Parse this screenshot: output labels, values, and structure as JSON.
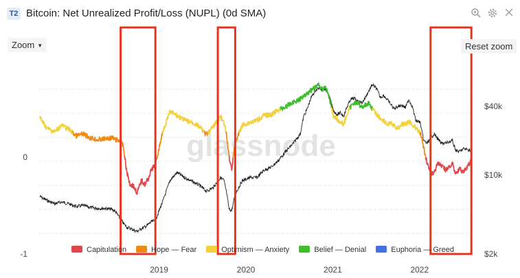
{
  "header": {
    "badge": "T2",
    "title": "Bitcoin: Net Unrealized Profit/Loss (NUPL) (0d SMA)",
    "icons": [
      "zoom-in-icon",
      "gear-icon",
      "close-icon"
    ]
  },
  "controls": {
    "zoom_label": "Zoom",
    "reset_label": "Reset zoom"
  },
  "watermark": "glassnode",
  "colors": {
    "capitulation": "#e0474c",
    "hope_fear": "#ef8a17",
    "optimism_anxiety": "#f2d13d",
    "belief_denial": "#3bbf2a",
    "euphoria_greed": "#4472e3",
    "price": "#222222",
    "highlight": "#e8341c"
  },
  "chart_data": {
    "type": "line",
    "title": "Bitcoin: Net Unrealized Profit/Loss (NUPL) (0d SMA)",
    "x_ticks": [
      "2019",
      "2020",
      "2021",
      "2022"
    ],
    "y_left_ticks": [
      "0",
      "-1"
    ],
    "y_right_ticks": [
      "$40k",
      "$10k",
      "$2k"
    ],
    "y_left_range": [
      -1,
      1
    ],
    "y_right_scale": "log",
    "y_right_range": [
      2000,
      100000
    ],
    "legend": [
      {
        "label": "Capitulation",
        "color": "#e0474c"
      },
      {
        "label": "Hope — Fear",
        "color": "#ef8a17"
      },
      {
        "label": "Optimism — Anxiety",
        "color": "#f2d13d"
      },
      {
        "label": "Belief — Denial",
        "color": "#3bbf2a"
      },
      {
        "label": "Euphoria — Greed",
        "color": "#4472e3"
      }
    ],
    "highlight_periods": [
      {
        "start": 2018.93,
        "end": 2019.33
      },
      {
        "start": 2020.05,
        "end": 2020.25
      },
      {
        "start": 2022.5,
        "end": 2022.97
      }
    ],
    "series": [
      {
        "name": "NUPL",
        "x": [
          2018.0,
          2018.08,
          2018.17,
          2018.25,
          2018.33,
          2018.42,
          2018.5,
          2018.58,
          2018.67,
          2018.75,
          2018.83,
          2018.87,
          2018.92,
          2018.96,
          2019.0,
          2019.04,
          2019.08,
          2019.12,
          2019.17,
          2019.21,
          2019.25,
          2019.29,
          2019.33,
          2019.42,
          2019.5,
          2019.58,
          2019.67,
          2019.75,
          2019.83,
          2019.92,
          2020.0,
          2020.08,
          2020.12,
          2020.15,
          2020.18,
          2020.21,
          2020.25,
          2020.33,
          2020.42,
          2020.5,
          2020.58,
          2020.67,
          2020.75,
          2020.83,
          2020.92,
          2021.0,
          2021.04,
          2021.08,
          2021.12,
          2021.17,
          2021.21,
          2021.25,
          2021.29,
          2021.33,
          2021.38,
          2021.42,
          2021.46,
          2021.5,
          2021.54,
          2021.58,
          2021.62,
          2021.67,
          2021.71,
          2021.75,
          2021.79,
          2021.83,
          2021.88,
          2021.92,
          2021.96,
          2022.0,
          2022.04,
          2022.08,
          2022.12,
          2022.17,
          2022.21,
          2022.25,
          2022.29,
          2022.33,
          2022.38,
          2022.42,
          2022.46,
          2022.5,
          2022.54,
          2022.58,
          2022.62,
          2022.67,
          2022.71,
          2022.75,
          2022.79,
          2022.83,
          2022.88,
          2022.92,
          2022.96
        ],
        "y": [
          0.41,
          0.3,
          0.26,
          0.33,
          0.29,
          0.22,
          0.24,
          0.2,
          0.18,
          0.19,
          0.2,
          0.18,
          0.17,
          0.12,
          -0.15,
          -0.28,
          -0.3,
          -0.37,
          -0.24,
          -0.28,
          -0.22,
          -0.12,
          -0.08,
          0.28,
          0.47,
          0.43,
          0.38,
          0.36,
          0.32,
          0.23,
          0.32,
          0.42,
          0.35,
          0.23,
          0.0,
          -0.12,
          0.15,
          0.33,
          0.36,
          0.38,
          0.43,
          0.44,
          0.49,
          0.52,
          0.57,
          0.6,
          0.64,
          0.66,
          0.69,
          0.72,
          0.75,
          0.7,
          0.73,
          0.62,
          0.43,
          0.4,
          0.36,
          0.34,
          0.45,
          0.52,
          0.57,
          0.55,
          0.52,
          0.54,
          0.56,
          0.5,
          0.44,
          0.4,
          0.38,
          0.34,
          0.35,
          0.32,
          0.3,
          0.34,
          0.34,
          0.37,
          0.34,
          0.3,
          0.25,
          0.1,
          -0.05,
          -0.18,
          -0.16,
          -0.06,
          -0.09,
          -0.13,
          -0.11,
          -0.06,
          -0.17,
          -0.12,
          -0.15,
          -0.11,
          -0.05
        ]
      },
      {
        "name": "Price (USD)",
        "x": [
          2018.0,
          2018.08,
          2018.17,
          2018.25,
          2018.33,
          2018.42,
          2018.5,
          2018.58,
          2018.67,
          2018.75,
          2018.83,
          2018.87,
          2018.92,
          2018.96,
          2019.0,
          2019.04,
          2019.08,
          2019.12,
          2019.17,
          2019.21,
          2019.25,
          2019.29,
          2019.33,
          2019.42,
          2019.5,
          2019.58,
          2019.67,
          2019.75,
          2019.83,
          2019.92,
          2020.0,
          2020.08,
          2020.12,
          2020.15,
          2020.18,
          2020.21,
          2020.25,
          2020.33,
          2020.42,
          2020.5,
          2020.58,
          2020.67,
          2020.75,
          2020.83,
          2020.92,
          2021.0,
          2021.04,
          2021.08,
          2021.12,
          2021.17,
          2021.21,
          2021.25,
          2021.29,
          2021.33,
          2021.38,
          2021.42,
          2021.46,
          2021.5,
          2021.54,
          2021.58,
          2021.62,
          2021.67,
          2021.71,
          2021.75,
          2021.79,
          2021.83,
          2021.88,
          2021.92,
          2021.96,
          2022.0,
          2022.04,
          2022.08,
          2022.12,
          2022.17,
          2022.21,
          2022.25,
          2022.29,
          2022.33,
          2022.38,
          2022.42,
          2022.46,
          2022.5,
          2022.54,
          2022.58,
          2022.62,
          2022.67,
          2022.71,
          2022.75,
          2022.79,
          2022.83,
          2022.88,
          2022.92,
          2022.96
        ],
        "y": [
          6500,
          6000,
          5600,
          5800,
          5600,
          5300,
          5400,
          5200,
          5100,
          5100,
          5000,
          4800,
          4200,
          3800,
          3500,
          3400,
          3300,
          3200,
          3400,
          3500,
          3700,
          3900,
          4000,
          6000,
          9000,
          10500,
          9500,
          8800,
          8200,
          7200,
          7800,
          9500,
          9000,
          7000,
          5000,
          4900,
          6800,
          8900,
          9500,
          9500,
          11000,
          11800,
          13500,
          16000,
          19000,
          23000,
          33000,
          38000,
          47000,
          55000,
          58000,
          56000,
          57000,
          50000,
          37000,
          34000,
          35000,
          33000,
          40000,
          46000,
          47000,
          44000,
          43000,
          48000,
          55000,
          62000,
          57000,
          48000,
          50000,
          46000,
          42000,
          38000,
          40000,
          41000,
          39000,
          46000,
          40000,
          30000,
          29000,
          20000,
          19000,
          21000,
          23000,
          21000,
          19000,
          19000,
          19500,
          20000,
          16500,
          16000,
          17000,
          16800,
          16500
        ]
      }
    ]
  }
}
